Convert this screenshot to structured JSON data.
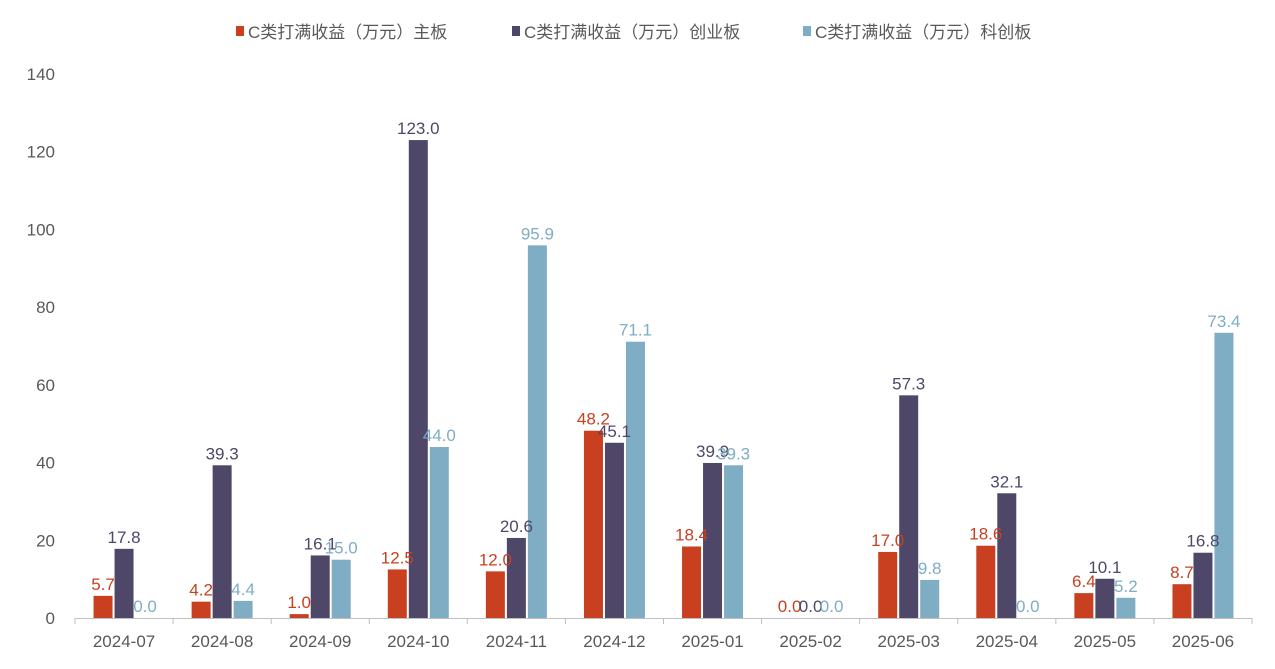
{
  "chart_data": {
    "type": "bar",
    "categories": [
      "2024-07",
      "2024-08",
      "2024-09",
      "2024-10",
      "2024-11",
      "2024-12",
      "2025-01",
      "2025-02",
      "2025-03",
      "2025-04",
      "2025-05",
      "2025-06"
    ],
    "series": [
      {
        "name": "C类打满收益（万元）主板",
        "color": "#c8401f",
        "values": [
          5.7,
          4.2,
          1.0,
          12.5,
          12.0,
          48.2,
          18.4,
          0.0,
          17.0,
          18.6,
          6.4,
          8.7
        ]
      },
      {
        "name": "C类打满收益（万元）创业板",
        "color": "#4e4768",
        "values": [
          17.8,
          39.3,
          16.1,
          123.0,
          20.6,
          45.1,
          39.9,
          0.0,
          57.3,
          32.1,
          10.1,
          16.8
        ]
      },
      {
        "name": "C类打满收益（万元）科创板",
        "color": "#7fadc4",
        "values": [
          0.0,
          4.4,
          15.0,
          44.0,
          95.9,
          71.1,
          39.3,
          0.0,
          9.8,
          0.0,
          5.2,
          73.4
        ]
      }
    ],
    "yticks": [
      "0",
      "20",
      "40",
      "60",
      "80",
      "100",
      "120",
      "140"
    ],
    "ylim": [
      0,
      140
    ],
    "legend_position": "top",
    "grid": false
  }
}
